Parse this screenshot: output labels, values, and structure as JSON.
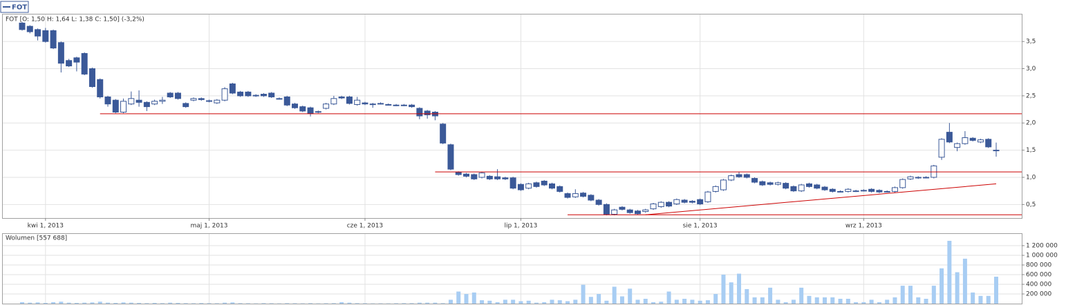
{
  "chart_data": {
    "type": "candlestick",
    "name": "FOT",
    "header": "FOT [O: 1,50  H: 1,64  L: 1,38  C: 1,50] (-3,2%)",
    "color": "#3b5998",
    "up_fill": "#ffffff",
    "line_color": "#cc0000",
    "grid": true,
    "x": [
      "2013-03-26",
      "2013-03-27",
      "2013-03-28",
      "2013-04-02",
      "2013-04-03",
      "2013-04-04",
      "2013-04-05",
      "2013-04-08",
      "2013-04-09",
      "2013-04-10",
      "2013-04-11",
      "2013-04-12",
      "2013-04-15",
      "2013-04-16",
      "2013-04-17",
      "2013-04-18",
      "2013-04-19",
      "2013-04-22",
      "2013-04-23",
      "2013-04-24",
      "2013-04-25",
      "2013-04-26",
      "2013-04-29",
      "2013-04-30",
      "2013-05-02",
      "2013-05-06",
      "2013-05-07",
      "2013-05-08",
      "2013-05-09",
      "2013-05-10",
      "2013-05-13",
      "2013-05-14",
      "2013-05-15",
      "2013-05-16",
      "2013-05-17",
      "2013-05-20",
      "2013-05-21",
      "2013-05-22",
      "2013-05-23",
      "2013-05-24",
      "2013-05-27",
      "2013-05-28",
      "2013-05-29",
      "2013-05-31",
      "2013-06-03",
      "2013-06-04",
      "2013-06-05",
      "2013-06-06",
      "2013-06-07",
      "2013-06-10",
      "2013-06-11",
      "2013-06-12",
      "2013-06-13",
      "2013-06-14",
      "2013-06-17",
      "2013-06-18",
      "2013-06-19",
      "2013-06-20",
      "2013-06-21",
      "2013-06-24",
      "2013-06-25",
      "2013-06-26",
      "2013-06-27",
      "2013-06-28",
      "2013-07-01",
      "2013-07-02",
      "2013-07-03",
      "2013-07-04",
      "2013-07-05",
      "2013-07-08",
      "2013-07-09",
      "2013-07-10",
      "2013-07-11",
      "2013-07-12",
      "2013-07-15",
      "2013-07-16",
      "2013-07-17",
      "2013-07-18",
      "2013-07-19",
      "2013-07-22",
      "2013-07-23",
      "2013-07-24",
      "2013-07-25",
      "2013-07-26",
      "2013-07-29",
      "2013-07-30",
      "2013-07-31",
      "2013-08-01",
      "2013-08-02",
      "2013-08-05",
      "2013-08-06",
      "2013-08-07",
      "2013-08-08",
      "2013-08-09",
      "2013-08-12",
      "2013-08-13",
      "2013-08-14",
      "2013-08-16",
      "2013-08-19",
      "2013-08-20",
      "2013-08-21",
      "2013-08-22",
      "2013-08-23",
      "2013-08-26",
      "2013-08-27",
      "2013-08-28",
      "2013-08-29",
      "2013-08-30",
      "2013-09-02",
      "2013-09-03",
      "2013-09-04",
      "2013-09-05",
      "2013-09-06",
      "2013-09-09",
      "2013-09-10",
      "2013-09-11",
      "2013-09-12",
      "2013-09-13",
      "2013-09-16",
      "2013-09-17",
      "2013-09-18",
      "2013-09-19",
      "2013-09-20",
      "2013-09-23",
      "2013-09-24",
      "2013-09-25"
    ],
    "open": [
      3.84,
      3.78,
      3.72,
      3.7,
      3.7,
      3.48,
      3.15,
      3.2,
      3.28,
      3.0,
      2.8,
      2.48,
      2.42,
      2.2,
      2.35,
      2.42,
      2.38,
      2.35,
      2.4,
      2.55,
      2.55,
      2.36,
      2.42,
      2.45,
      2.4,
      2.37,
      2.42,
      2.72,
      2.57,
      2.57,
      2.5,
      2.53,
      2.55,
      2.45,
      2.48,
      2.35,
      2.3,
      2.28,
      2.2,
      2.27,
      2.35,
      2.48,
      2.48,
      2.34,
      2.37,
      2.35,
      2.36,
      2.34,
      2.33,
      2.33,
      2.33,
      2.27,
      2.22,
      2.2,
      1.98,
      1.6,
      1.09,
      1.06,
      1.05,
      1.0,
      1.02,
      1.01,
      0.99,
      0.99,
      0.87,
      0.8,
      0.9,
      0.93,
      0.88,
      0.83,
      0.7,
      0.64,
      0.71,
      0.67,
      0.58,
      0.5,
      0.32,
      0.45,
      0.4,
      0.38,
      0.37,
      0.42,
      0.46,
      0.54,
      0.51,
      0.58,
      0.56,
      0.59,
      0.55,
      0.74,
      0.77,
      0.95,
      1.05,
      1.05,
      0.98,
      0.92,
      0.9,
      0.87,
      0.89,
      0.83,
      0.75,
      0.88,
      0.86,
      0.82,
      0.78,
      0.74,
      0.74,
      0.75,
      0.76,
      0.78,
      0.76,
      0.74,
      0.74,
      0.81,
      0.97,
      0.99,
      1.0,
      1.0,
      1.37,
      1.83,
      1.55,
      1.62,
      1.72,
      1.65,
      1.7,
      1.5
    ],
    "high": [
      3.86,
      3.8,
      3.74,
      3.75,
      3.72,
      3.5,
      3.18,
      3.22,
      3.3,
      3.02,
      2.82,
      2.5,
      2.44,
      2.45,
      2.58,
      2.6,
      2.4,
      2.43,
      2.48,
      2.57,
      2.57,
      2.38,
      2.47,
      2.47,
      2.43,
      2.44,
      2.66,
      2.74,
      2.59,
      2.59,
      2.53,
      2.55,
      2.57,
      2.47,
      2.5,
      2.37,
      2.32,
      2.3,
      2.23,
      2.37,
      2.5,
      2.5,
      2.5,
      2.48,
      2.39,
      2.37,
      2.38,
      2.36,
      2.35,
      2.35,
      2.35,
      2.29,
      2.24,
      2.22,
      2.0,
      1.62,
      1.11,
      1.08,
      1.07,
      1.1,
      1.04,
      1.15,
      1.01,
      1.01,
      0.89,
      0.9,
      0.92,
      0.95,
      0.9,
      0.85,
      0.72,
      0.78,
      0.73,
      0.69,
      0.6,
      0.52,
      0.42,
      0.47,
      0.42,
      0.4,
      0.42,
      0.53,
      0.56,
      0.56,
      0.61,
      0.6,
      0.58,
      0.61,
      0.75,
      0.85,
      0.97,
      1.05,
      1.1,
      1.07,
      1.0,
      0.94,
      0.92,
      0.92,
      0.91,
      0.85,
      0.88,
      0.9,
      0.88,
      0.84,
      0.8,
      0.76,
      0.8,
      0.77,
      0.78,
      0.8,
      0.78,
      0.76,
      0.83,
      0.98,
      1.03,
      1.02,
      1.02,
      1.23,
      1.72,
      2.0,
      1.64,
      1.85,
      1.74,
      1.71,
      1.72,
      1.64
    ],
    "low": [
      3.7,
      3.65,
      3.52,
      3.48,
      3.36,
      2.93,
      3.03,
      2.95,
      2.88,
      2.65,
      2.45,
      2.3,
      2.18,
      2.18,
      2.33,
      2.3,
      2.22,
      2.33,
      2.35,
      2.46,
      2.43,
      2.28,
      2.4,
      2.41,
      2.38,
      2.35,
      2.4,
      2.53,
      2.48,
      2.48,
      2.48,
      2.48,
      2.46,
      2.43,
      2.31,
      2.26,
      2.2,
      2.12,
      2.18,
      2.25,
      2.33,
      2.44,
      2.34,
      2.32,
      2.33,
      2.28,
      2.34,
      2.32,
      2.31,
      2.31,
      2.28,
      2.07,
      2.08,
      2.05,
      1.61,
      1.13,
      1.03,
      1.0,
      0.95,
      0.98,
      0.95,
      0.95,
      0.95,
      0.78,
      0.75,
      0.78,
      0.81,
      0.84,
      0.78,
      0.72,
      0.61,
      0.62,
      0.63,
      0.56,
      0.48,
      0.3,
      0.3,
      0.39,
      0.33,
      0.31,
      0.35,
      0.4,
      0.44,
      0.45,
      0.49,
      0.52,
      0.52,
      0.49,
      0.53,
      0.72,
      0.75,
      0.93,
      0.99,
      0.98,
      0.89,
      0.84,
      0.85,
      0.85,
      0.78,
      0.73,
      0.73,
      0.81,
      0.78,
      0.75,
      0.72,
      0.72,
      0.72,
      0.73,
      0.74,
      0.72,
      0.71,
      0.72,
      0.72,
      0.79,
      0.95,
      0.97,
      0.98,
      0.98,
      1.32,
      1.63,
      1.48,
      1.6,
      1.66,
      1.63,
      1.54,
      1.38
    ],
    "close": [
      3.72,
      3.68,
      3.6,
      3.5,
      3.38,
      3.1,
      3.05,
      3.12,
      2.9,
      2.67,
      2.48,
      2.35,
      2.2,
      2.4,
      2.45,
      2.38,
      2.3,
      2.4,
      2.42,
      2.48,
      2.45,
      2.3,
      2.45,
      2.43,
      2.41,
      2.42,
      2.63,
      2.55,
      2.5,
      2.5,
      2.51,
      2.5,
      2.48,
      2.45,
      2.33,
      2.28,
      2.22,
      2.18,
      2.21,
      2.35,
      2.45,
      2.46,
      2.36,
      2.42,
      2.35,
      2.35,
      2.36,
      2.34,
      2.33,
      2.33,
      2.3,
      2.13,
      2.15,
      2.13,
      1.63,
      1.15,
      1.05,
      1.02,
      0.97,
      1.08,
      0.97,
      0.97,
      0.97,
      0.8,
      0.77,
      0.88,
      0.83,
      0.86,
      0.8,
      0.74,
      0.63,
      0.7,
      0.65,
      0.58,
      0.5,
      0.32,
      0.4,
      0.41,
      0.35,
      0.33,
      0.4,
      0.51,
      0.54,
      0.47,
      0.59,
      0.54,
      0.54,
      0.51,
      0.73,
      0.83,
      0.95,
      1.03,
      1.01,
      1.0,
      0.91,
      0.86,
      0.87,
      0.9,
      0.8,
      0.75,
      0.86,
      0.83,
      0.8,
      0.77,
      0.74,
      0.74,
      0.78,
      0.75,
      0.76,
      0.74,
      0.73,
      0.74,
      0.81,
      0.96,
      1.01,
      1.0,
      1.0,
      1.21,
      1.7,
      1.65,
      1.62,
      1.73,
      1.68,
      1.69,
      1.56,
      1.5
    ],
    "ylim": [
      0.25,
      4.01
    ],
    "yticks": [
      {
        "value": 0.5,
        "label": "0,5"
      },
      {
        "value": 1.0,
        "label": "1,0"
      },
      {
        "value": 1.5,
        "label": "1,5"
      },
      {
        "value": 2.0,
        "label": "2,0"
      },
      {
        "value": 2.5,
        "label": "2,5"
      },
      {
        "value": 3.0,
        "label": "3,0"
      },
      {
        "value": 3.5,
        "label": "3,5"
      }
    ],
    "xticks": [
      {
        "value": "2013-04-01",
        "label": "kwi 1, 2013"
      },
      {
        "value": "2013-05-01",
        "label": "maj 1, 2013"
      },
      {
        "value": "2013-06-01",
        "label": "cze 1, 2013"
      },
      {
        "value": "2013-07-01",
        "label": "lip 1, 2013"
      },
      {
        "value": "2013-08-01",
        "label": "sie 1, 2013"
      },
      {
        "value": "2013-09-01",
        "label": "wrz 1, 2013"
      }
    ],
    "trend_lines": [
      {
        "x": [
          "2013-04-11",
          "2013-09-25"
        ],
        "values": [
          2.17,
          2.17
        ]
      },
      {
        "x": [
          "2013-06-14",
          "2013-09-25"
        ],
        "values": [
          1.1,
          1.1
        ]
      },
      {
        "x": [
          "2013-07-09",
          "2013-09-25"
        ],
        "values": [
          0.31,
          0.31
        ]
      },
      {
        "x": [
          "2013-07-23",
          "2013-09-25"
        ],
        "values": [
          0.31,
          0.88
        ]
      }
    ],
    "volume": {
      "label": "Wolumen [557 688]",
      "color": "#a8cdf3",
      "values": [
        30000,
        20000,
        25000,
        15000,
        30000,
        40000,
        20000,
        15000,
        20000,
        25000,
        40000,
        20000,
        15000,
        25000,
        20000,
        15000,
        10000,
        15000,
        10000,
        20000,
        15000,
        10000,
        8000,
        12000,
        10000,
        8000,
        20000,
        25000,
        10000,
        8000,
        5000,
        10000,
        8000,
        5000,
        10000,
        8000,
        6000,
        10000,
        5000,
        8000,
        10000,
        30000,
        20000,
        10000,
        8000,
        5000,
        6000,
        5000,
        8000,
        10000,
        10000,
        20000,
        20000,
        20000,
        10000,
        80000,
        250000,
        200000,
        230000,
        70000,
        60000,
        30000,
        80000,
        80000,
        50000,
        60000,
        20000,
        30000,
        80000,
        70000,
        50000,
        80000,
        390000,
        140000,
        200000,
        60000,
        350000,
        150000,
        310000,
        80000,
        100000,
        30000,
        40000,
        250000,
        80000,
        100000,
        80000,
        60000,
        70000,
        200000,
        600000,
        440000,
        620000,
        300000,
        130000,
        130000,
        330000,
        80000,
        30000,
        80000,
        330000,
        160000,
        130000,
        130000,
        130000,
        100000,
        100000,
        30000,
        30000,
        80000,
        30000,
        80000,
        130000,
        370000,
        370000,
        130000,
        100000,
        370000,
        730000,
        1300000,
        650000,
        930000,
        230000,
        160000,
        160000,
        557688
      ],
      "ylim": [
        0,
        1457000
      ],
      "yticks": [
        {
          "value": 200000,
          "label": "200 000"
        },
        {
          "value": 400000,
          "label": "400 000"
        },
        {
          "value": 600000,
          "label": "600 000"
        },
        {
          "value": 800000,
          "label": "800 000"
        },
        {
          "value": 1000000,
          "label": "1 000 000"
        },
        {
          "value": 1200000,
          "label": "1 200 000"
        }
      ]
    }
  }
}
